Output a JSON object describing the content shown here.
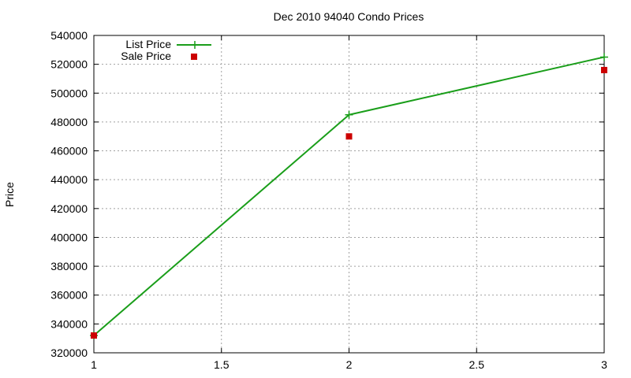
{
  "chart_data": {
    "type": "line",
    "title": "Dec 2010 94040 Condo Prices",
    "xlabel": "",
    "ylabel": "Price",
    "xlim": [
      1,
      3
    ],
    "ylim": [
      320000,
      540000
    ],
    "x_ticks": [
      1,
      1.5,
      2,
      2.5,
      3
    ],
    "x_tick_labels": [
      "1",
      "1.5",
      "2",
      "2.5",
      "3"
    ],
    "y_ticks": [
      320000,
      340000,
      360000,
      380000,
      400000,
      420000,
      440000,
      460000,
      480000,
      500000,
      520000,
      540000
    ],
    "y_tick_labels": [
      "320000",
      "340000",
      "360000",
      "380000",
      "400000",
      "420000",
      "440000",
      "460000",
      "480000",
      "500000",
      "520000",
      "540000"
    ],
    "grid": true,
    "legend_position": "top-left",
    "series": [
      {
        "name": "List Price",
        "style": "linespoints",
        "marker": "plus",
        "color": "#1a9e1a",
        "x": [
          1,
          2,
          3
        ],
        "values": [
          332000,
          485000,
          525000
        ]
      },
      {
        "name": "Sale Price",
        "style": "points",
        "marker": "square",
        "color": "#cc0000",
        "x": [
          1,
          2,
          3
        ],
        "values": [
          332000,
          470000,
          516000
        ]
      }
    ]
  }
}
